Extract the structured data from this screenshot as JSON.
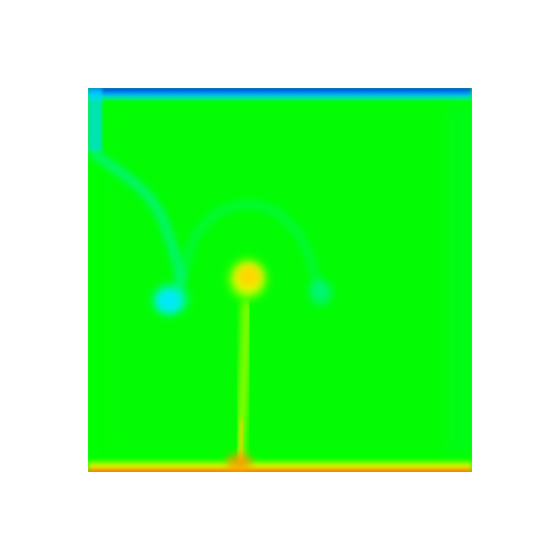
{
  "image": {
    "subject": "",
    "colormap": [
      "#0000c8",
      "#00ffff",
      "#00ff00",
      "#ffff00",
      "#ff0000"
    ],
    "background_color": "#ffffff",
    "field_base_color": "#00ff00"
  }
}
